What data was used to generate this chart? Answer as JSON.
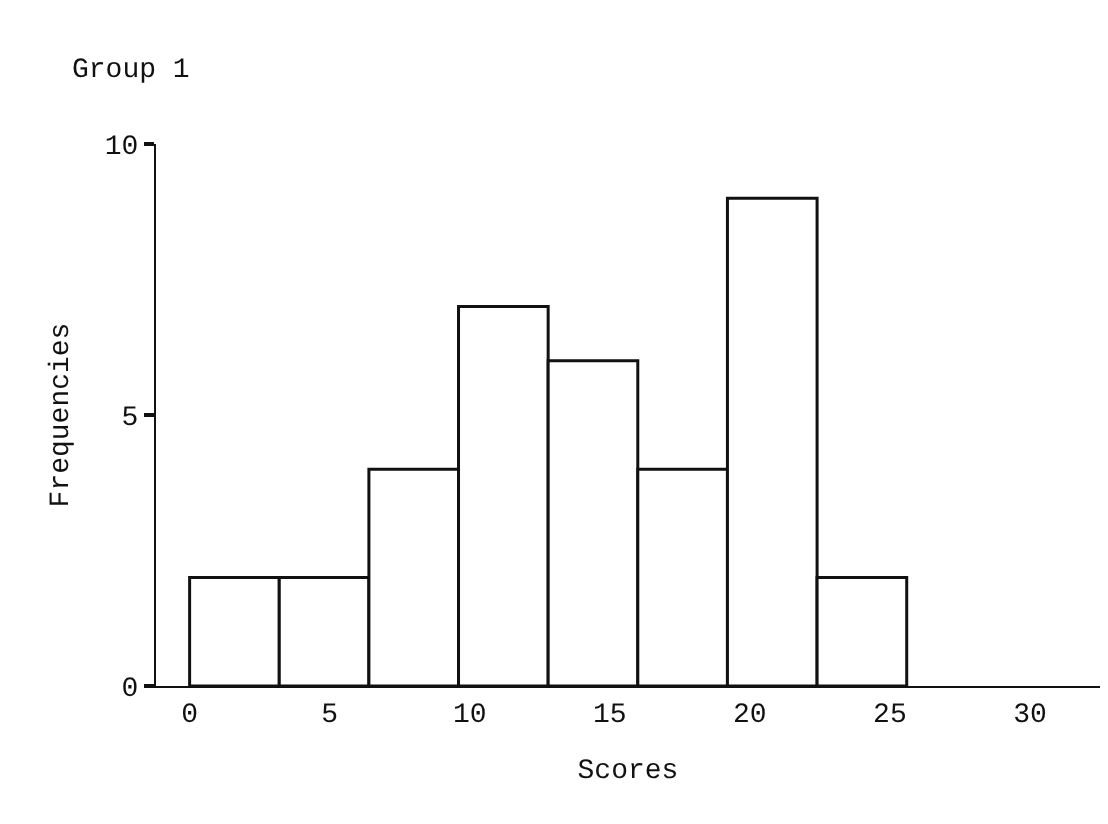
{
  "chart_data": {
    "type": "histogram",
    "title": "Group 1",
    "xlabel": "Scores",
    "ylabel": "Frequencies",
    "bins": [
      0,
      3.2,
      6.4,
      9.6,
      12.8,
      16,
      19.2,
      22.4,
      25.6
    ],
    "values": [
      2,
      2,
      4,
      7,
      6,
      4,
      9,
      2
    ],
    "color": "#ffffff",
    "xlim": [
      -1.2,
      32.5
    ],
    "xticks": [
      0,
      5,
      10,
      15,
      20,
      25,
      30
    ],
    "ylim": [
      0,
      10
    ],
    "yticks": [
      0,
      5,
      10
    ],
    "grid": false
  }
}
